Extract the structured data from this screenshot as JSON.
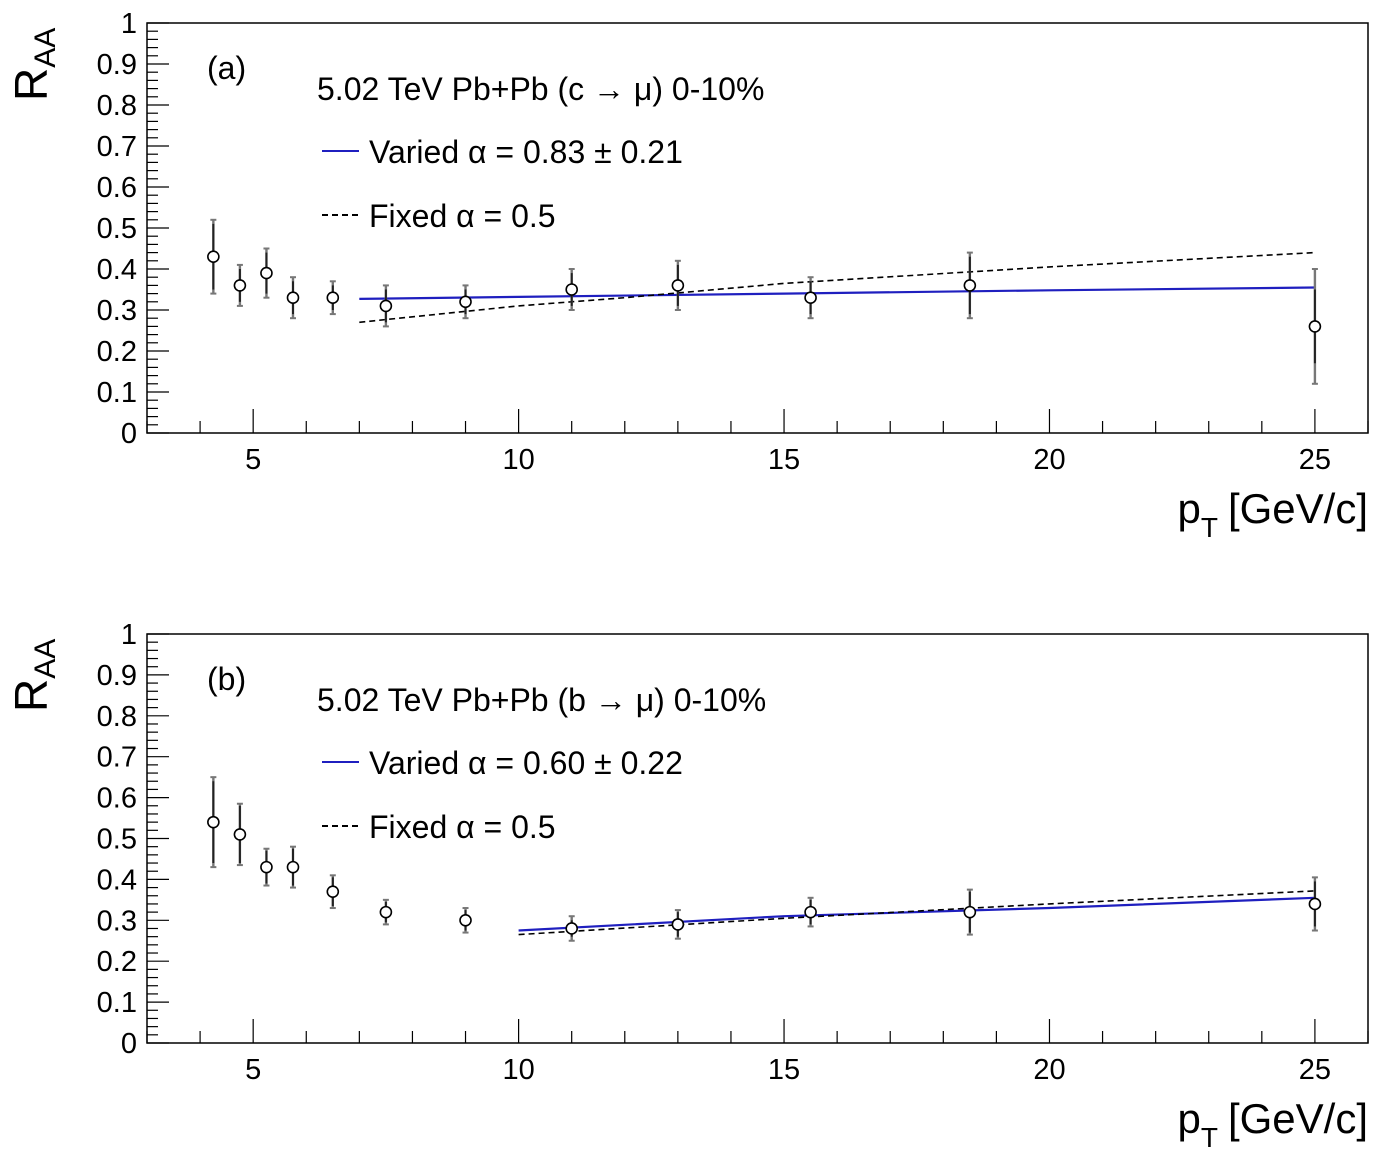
{
  "chart_data": [
    {
      "type": "scatter",
      "panel_label": "(a)",
      "title": "5.02 TeV Pb+Pb (c → μ) 0-10%",
      "xlabel": "p",
      "xlabel_sub": "T",
      "xlabel_unit": "[GeV/c]",
      "ylabel": "R",
      "ylabel_sub": "AA",
      "xlim": [
        3,
        26
      ],
      "ylim": [
        0,
        1
      ],
      "xticks": [
        5,
        10,
        15,
        20,
        25
      ],
      "yticks": [
        0,
        0.1,
        0.2,
        0.3,
        0.4,
        0.5,
        0.6,
        0.7,
        0.8,
        0.9,
        1
      ],
      "ytick_labels": [
        "0",
        "0.1",
        "0.2",
        "0.3",
        "0.4",
        "0.5",
        "0.6",
        "0.7",
        "0.8",
        "0.9",
        "1"
      ],
      "grid": false,
      "legend": [
        {
          "label": "Varied α = 0.83 ± 0.21",
          "style": "solid",
          "color": "#1f1fbf"
        },
        {
          "label": "Fixed α = 0.5",
          "style": "dashed",
          "color": "#000000"
        }
      ],
      "points": [
        {
          "x": 4.25,
          "y": 0.43,
          "stat": 0.08,
          "sys": 0.09
        },
        {
          "x": 4.75,
          "y": 0.36,
          "stat": 0.04,
          "sys": 0.05
        },
        {
          "x": 5.25,
          "y": 0.39,
          "stat": 0.05,
          "sys": 0.06
        },
        {
          "x": 5.75,
          "y": 0.33,
          "stat": 0.04,
          "sys": 0.05
        },
        {
          "x": 6.5,
          "y": 0.33,
          "stat": 0.03,
          "sys": 0.04
        },
        {
          "x": 7.5,
          "y": 0.31,
          "stat": 0.04,
          "sys": 0.05
        },
        {
          "x": 9.0,
          "y": 0.32,
          "stat": 0.03,
          "sys": 0.04
        },
        {
          "x": 11.0,
          "y": 0.35,
          "stat": 0.04,
          "sys": 0.05
        },
        {
          "x": 13.0,
          "y": 0.36,
          "stat": 0.05,
          "sys": 0.06
        },
        {
          "x": 15.5,
          "y": 0.33,
          "stat": 0.04,
          "sys": 0.05
        },
        {
          "x": 18.5,
          "y": 0.36,
          "stat": 0.07,
          "sys": 0.08
        },
        {
          "x": 25.0,
          "y": 0.26,
          "stat": 0.09,
          "sys": 0.14
        }
      ],
      "series": [
        {
          "style": "solid",
          "color": "#1f1fbf",
          "x": [
            7,
            10,
            15,
            20,
            25
          ],
          "y": [
            0.327,
            0.332,
            0.34,
            0.348,
            0.355
          ]
        },
        {
          "style": "dashed",
          "color": "#000000",
          "x": [
            7,
            10,
            12,
            15,
            20,
            25
          ],
          "y": [
            0.27,
            0.31,
            0.33,
            0.365,
            0.405,
            0.44
          ]
        }
      ]
    },
    {
      "type": "scatter",
      "panel_label": "(b)",
      "title": "5.02 TeV Pb+Pb (b → μ) 0-10%",
      "xlabel": "p",
      "xlabel_sub": "T",
      "xlabel_unit": "[GeV/c]",
      "ylabel": "R",
      "ylabel_sub": "AA",
      "xlim": [
        3,
        26
      ],
      "ylim": [
        0,
        1
      ],
      "xticks": [
        5,
        10,
        15,
        20,
        25
      ],
      "yticks": [
        0,
        0.1,
        0.2,
        0.3,
        0.4,
        0.5,
        0.6,
        0.7,
        0.8,
        0.9,
        1
      ],
      "ytick_labels": [
        "0",
        "0.1",
        "0.2",
        "0.3",
        "0.4",
        "0.5",
        "0.6",
        "0.7",
        "0.8",
        "0.9",
        "1"
      ],
      "grid": false,
      "legend": [
        {
          "label": "Varied α = 0.60 ± 0.22",
          "style": "solid",
          "color": "#1f1fbf"
        },
        {
          "label": "Fixed α = 0.5",
          "style": "dashed",
          "color": "#000000"
        }
      ],
      "points": [
        {
          "x": 4.25,
          "y": 0.54,
          "stat": 0.1,
          "sys": 0.11
        },
        {
          "x": 4.75,
          "y": 0.51,
          "stat": 0.07,
          "sys": 0.075
        },
        {
          "x": 5.25,
          "y": 0.43,
          "stat": 0.04,
          "sys": 0.045
        },
        {
          "x": 5.75,
          "y": 0.43,
          "stat": 0.045,
          "sys": 0.05
        },
        {
          "x": 6.5,
          "y": 0.37,
          "stat": 0.035,
          "sys": 0.04
        },
        {
          "x": 7.5,
          "y": 0.32,
          "stat": 0.025,
          "sys": 0.03
        },
        {
          "x": 9.0,
          "y": 0.3,
          "stat": 0.025,
          "sys": 0.03
        },
        {
          "x": 11.0,
          "y": 0.28,
          "stat": 0.02,
          "sys": 0.03
        },
        {
          "x": 13.0,
          "y": 0.29,
          "stat": 0.03,
          "sys": 0.035
        },
        {
          "x": 15.5,
          "y": 0.32,
          "stat": 0.03,
          "sys": 0.035
        },
        {
          "x": 18.5,
          "y": 0.32,
          "stat": 0.05,
          "sys": 0.055
        },
        {
          "x": 25.0,
          "y": 0.34,
          "stat": 0.055,
          "sys": 0.065
        }
      ],
      "series": [
        {
          "style": "solid",
          "color": "#1f1fbf",
          "x": [
            10,
            15,
            20,
            25
          ],
          "y": [
            0.275,
            0.31,
            0.33,
            0.355
          ]
        },
        {
          "style": "dashed",
          "color": "#000000",
          "x": [
            10,
            15,
            20,
            25
          ],
          "y": [
            0.265,
            0.305,
            0.34,
            0.372
          ]
        }
      ]
    }
  ]
}
